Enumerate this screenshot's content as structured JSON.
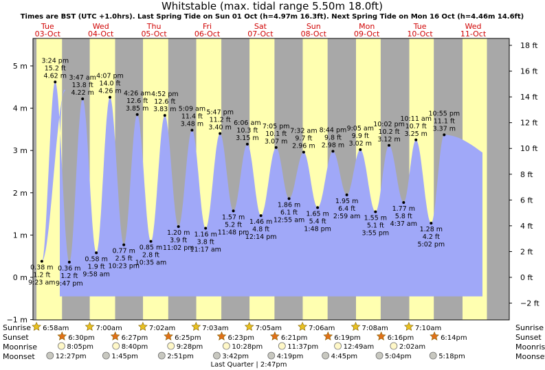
{
  "chart_data": {
    "type": "area",
    "title": "Whitstable (max. tidal range 5.50m 18.0ft)",
    "subtitle": "Times are BST (UTC +1.0hrs). Last Spring Tide on Sun 01 Oct (h=4.97m 16.3ft). Next Spring Tide on Mon 16 Oct (h=4.46m 14.6ft)",
    "left_axis": {
      "unit": "m",
      "ticks": [
        "5 m",
        "4 m",
        "3 m",
        "2 m",
        "1 m",
        "0 m",
        "−1 m"
      ],
      "range": [
        -1,
        5.75
      ]
    },
    "right_axis": {
      "unit": "ft",
      "ticks": [
        "18 ft",
        "16 ft",
        "14 ft",
        "12 ft",
        "10 ft",
        "8 ft",
        "6 ft",
        "4 ft",
        "2 ft",
        "0 ft",
        "−2 ft"
      ]
    },
    "days": [
      {
        "name": "Tue",
        "date": "03-Oct"
      },
      {
        "name": "Wed",
        "date": "04-Oct"
      },
      {
        "name": "Thu",
        "date": "05-Oct"
      },
      {
        "name": "Fri",
        "date": "06-Oct"
      },
      {
        "name": "Sat",
        "date": "07-Oct"
      },
      {
        "name": "Sun",
        "date": "08-Oct"
      },
      {
        "name": "Mon",
        "date": "09-Oct"
      },
      {
        "name": "Tue",
        "date": "10-Oct"
      },
      {
        "name": "Wed",
        "date": "11-Oct"
      }
    ],
    "tides": [
      {
        "type": "low",
        "time": "9:23 am",
        "m": "0.38 m",
        "ft": "1.2 ft",
        "h": 0.38,
        "day": 0,
        "hour": 9.38
      },
      {
        "type": "high",
        "time": "3:24 pm",
        "m": "4.62 m",
        "ft": "15.2 ft",
        "h": 4.62,
        "day": 0,
        "hour": 15.4
      },
      {
        "type": "low",
        "time": "9:47 pm",
        "m": "0.36 m",
        "ft": "1.2 ft",
        "h": 0.36,
        "day": 0,
        "hour": 21.78
      },
      {
        "type": "high",
        "time": "3:47 am",
        "m": "4.22 m",
        "ft": "13.8 ft",
        "h": 4.22,
        "day": 1,
        "hour": 3.78
      },
      {
        "type": "low",
        "time": "9:58 am",
        "m": "0.58 m",
        "ft": "1.9 ft",
        "h": 0.58,
        "day": 1,
        "hour": 9.97
      },
      {
        "type": "high",
        "time": "4:07 pm",
        "m": "4.26 m",
        "ft": "14.0 ft",
        "h": 4.26,
        "day": 1,
        "hour": 16.12
      },
      {
        "type": "low",
        "time": "10:23 pm",
        "m": "0.77 m",
        "ft": "2.5 ft",
        "h": 0.77,
        "day": 1,
        "hour": 22.38
      },
      {
        "type": "high",
        "time": "4:26 am",
        "m": "3.85 m",
        "ft": "12.6 ft",
        "h": 3.85,
        "day": 2,
        "hour": 4.43
      },
      {
        "type": "low",
        "time": "10:35 am",
        "m": "0.85 m",
        "ft": "2.8 ft",
        "h": 0.85,
        "day": 2,
        "hour": 10.58
      },
      {
        "type": "high",
        "time": "4:52 pm",
        "m": "3.83 m",
        "ft": "12.6 ft",
        "h": 3.83,
        "day": 2,
        "hour": 16.87
      },
      {
        "type": "low",
        "time": "11:02 pm",
        "m": "1.20 m",
        "ft": "3.9 ft",
        "h": 1.2,
        "day": 2,
        "hour": 23.03
      },
      {
        "type": "high",
        "time": "5:09 am",
        "m": "3.48 m",
        "ft": "11.4 ft",
        "h": 3.48,
        "day": 3,
        "hour": 5.15
      },
      {
        "type": "low",
        "time": "11:17 am",
        "m": "1.16 m",
        "ft": "3.8 ft",
        "h": 1.16,
        "day": 3,
        "hour": 11.28
      },
      {
        "type": "high",
        "time": "5:47 pm",
        "m": "3.40 m",
        "ft": "11.2 ft",
        "h": 3.4,
        "day": 3,
        "hour": 17.78
      },
      {
        "type": "low",
        "time": "11:48 pm",
        "m": "1.57 m",
        "ft": "5.2 ft",
        "h": 1.57,
        "day": 3,
        "hour": 23.8
      },
      {
        "type": "high",
        "time": "6:06 am",
        "m": "3.15 m",
        "ft": "10.3 ft",
        "h": 3.15,
        "day": 4,
        "hour": 6.1
      },
      {
        "type": "low",
        "time": "12:14 pm",
        "m": "1.46 m",
        "ft": "4.8 ft",
        "h": 1.46,
        "day": 4,
        "hour": 12.23
      },
      {
        "type": "high",
        "time": "7:05 pm",
        "m": "3.07 m",
        "ft": "10.1 ft",
        "h": 3.07,
        "day": 4,
        "hour": 19.08
      },
      {
        "type": "low",
        "time": "12:55 am",
        "m": "1.86 m",
        "ft": "6.1 ft",
        "h": 1.86,
        "day": 5,
        "hour": 0.92
      },
      {
        "type": "high",
        "time": "7:32 am",
        "m": "2.96 m",
        "ft": "9.7 ft",
        "h": 2.96,
        "day": 5,
        "hour": 7.53
      },
      {
        "type": "low",
        "time": "1:48 pm",
        "m": "1.65 m",
        "ft": "5.4 ft",
        "h": 1.65,
        "day": 5,
        "hour": 13.8
      },
      {
        "type": "high",
        "time": "8:44 pm",
        "m": "2.98 m",
        "ft": "9.8 ft",
        "h": 2.98,
        "day": 5,
        "hour": 20.73
      },
      {
        "type": "low",
        "time": "2:59 am",
        "m": "1.95 m",
        "ft": "6.4 ft",
        "h": 1.95,
        "day": 6,
        "hour": 2.98
      },
      {
        "type": "high",
        "time": "9:05 am",
        "m": "3.02 m",
        "ft": "9.9 ft",
        "h": 3.02,
        "day": 6,
        "hour": 9.08
      },
      {
        "type": "low",
        "time": "3:55 pm",
        "m": "1.55 m",
        "ft": "5.1 ft",
        "h": 1.55,
        "day": 6,
        "hour": 15.92
      },
      {
        "type": "high",
        "time": "10:02 pm",
        "m": "3.12 m",
        "ft": "10.2 ft",
        "h": 3.12,
        "day": 6,
        "hour": 22.03
      },
      {
        "type": "low",
        "time": "4:37 am",
        "m": "1.77 m",
        "ft": "5.8 ft",
        "h": 1.77,
        "day": 7,
        "hour": 4.62
      },
      {
        "type": "high",
        "time": "10:11 am",
        "m": "3.25 m",
        "ft": "10.7 ft",
        "h": 3.25,
        "day": 7,
        "hour": 10.18
      },
      {
        "type": "low",
        "time": "5:02 pm",
        "m": "1.28 m",
        "ft": "4.2 ft",
        "h": 1.28,
        "day": 7,
        "hour": 17.03
      },
      {
        "type": "high",
        "time": "10:55 pm",
        "m": "3.37 m",
        "ft": "11.1 ft",
        "h": 3.37,
        "day": 7,
        "hour": 22.92
      }
    ],
    "daylight": [
      {
        "day": 0,
        "sunrise": 6.97,
        "sunset": 18.5
      },
      {
        "day": 1,
        "sunrise": 7.0,
        "sunset": 18.45
      },
      {
        "day": 2,
        "sunrise": 7.03,
        "sunset": 18.42
      },
      {
        "day": 3,
        "sunrise": 7.05,
        "sunset": 18.38
      },
      {
        "day": 4,
        "sunrise": 7.08,
        "sunset": 18.35
      },
      {
        "day": 5,
        "sunrise": 7.1,
        "sunset": 18.32
      },
      {
        "day": 6,
        "sunrise": 7.13,
        "sunset": 18.27
      },
      {
        "day": 7,
        "sunrise": 7.17,
        "sunset": 18.23
      },
      {
        "day": 8,
        "sunrise": 7.2,
        "sunset": 18.2
      }
    ],
    "sunrise": [
      "6:58am",
      "7:00am",
      "7:02am",
      "7:03am",
      "7:05am",
      "7:06am",
      "7:08am",
      "7:10am"
    ],
    "sunset": [
      "6:30pm",
      "6:27pm",
      "6:25pm",
      "6:23pm",
      "6:21pm",
      "6:19pm",
      "6:16pm",
      "6:14pm"
    ],
    "moonrise": [
      "8:05pm",
      "8:40pm",
      "9:28pm",
      "10:28pm",
      "11:37pm",
      "12:49am",
      "2:02am"
    ],
    "moonset": [
      "12:27pm",
      "1:45pm",
      "2:51pm",
      "3:42pm",
      "4:19pm",
      "4:45pm",
      "5:04pm",
      "5:18pm"
    ],
    "moon_phase": "Last Quarter | 2:47pm",
    "row_labels": {
      "sunrise": "Sunrise",
      "sunset": "Sunset",
      "moonrise": "Moonrise",
      "moonset": "Moonset"
    },
    "colors": {
      "water": "#a0a8f8",
      "day": "#ffffb0",
      "night": "#a8a8a8",
      "day_label": "#d00000",
      "text": "#000000"
    }
  }
}
